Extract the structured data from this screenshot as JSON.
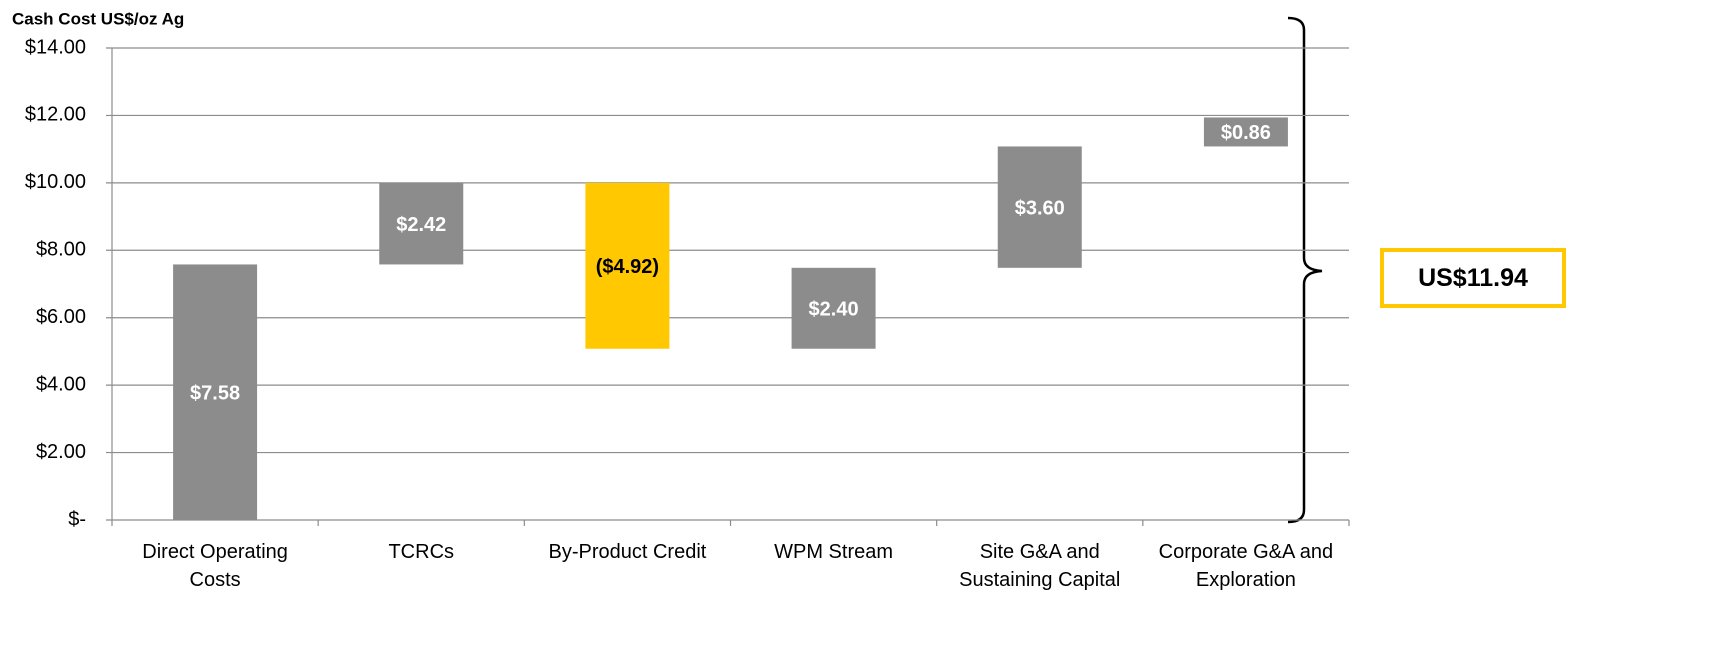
{
  "chart_data": {
    "type": "waterfall",
    "y_axis_label": "Cash Cost US$/oz Ag",
    "categories": [
      "Direct Operating Costs",
      "TCRCs",
      "By-Product Credit",
      "WPM Stream",
      "Site G&A and Sustaining Capital",
      "Corporate G&A and Exploration"
    ],
    "values": [
      7.58,
      2.42,
      -4.92,
      2.4,
      3.6,
      0.86
    ],
    "value_labels": [
      "$7.58",
      "$2.42",
      "($4.92)",
      "$2.40",
      "$3.60",
      "$0.86"
    ],
    "colors": [
      "#8c8c8c",
      "#8c8c8c",
      "#ffc800",
      "#8c8c8c",
      "#8c8c8c",
      "#8c8c8c"
    ],
    "value_label_colors": [
      "#ffffff",
      "#ffffff",
      "#000000",
      "#ffffff",
      "#ffffff",
      "#ffffff"
    ],
    "total_label": "US$11.94",
    "ylim": [
      0,
      14
    ],
    "yticks": [
      {
        "value": 0,
        "label": "$-"
      },
      {
        "value": 2,
        "label": "$2.00"
      },
      {
        "value": 4,
        "label": "$4.00"
      },
      {
        "value": 6,
        "label": "$6.00"
      },
      {
        "value": 8,
        "label": "$8.00"
      },
      {
        "value": 10,
        "label": "$10.00"
      },
      {
        "value": 12,
        "label": "$12.00"
      },
      {
        "value": 14,
        "label": "$14.00"
      }
    ],
    "grid": true
  }
}
